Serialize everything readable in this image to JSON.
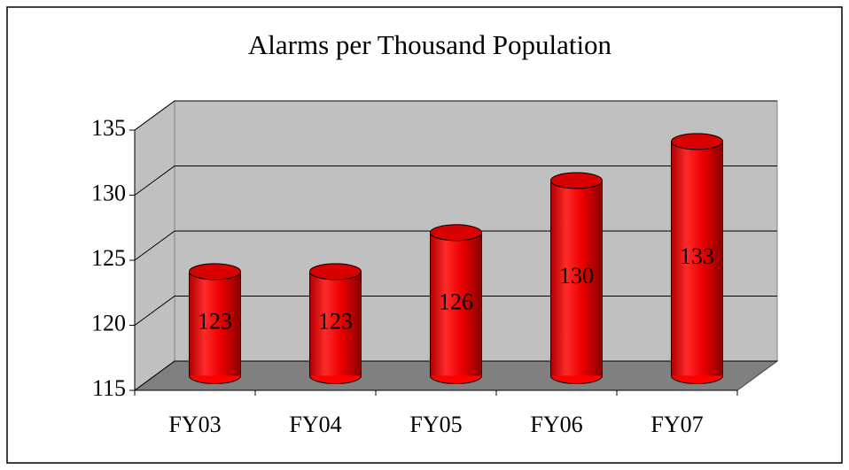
{
  "chart_data": {
    "type": "bar",
    "title": "Alarms per Thousand Population",
    "categories": [
      "FY03",
      "FY04",
      "FY05",
      "FY06",
      "FY07"
    ],
    "values": [
      123,
      123,
      126,
      130,
      133
    ],
    "color": "#ff0000",
    "ylim": [
      115,
      135
    ],
    "yticks": [
      115,
      120,
      125,
      130,
      135
    ],
    "grid": true
  }
}
